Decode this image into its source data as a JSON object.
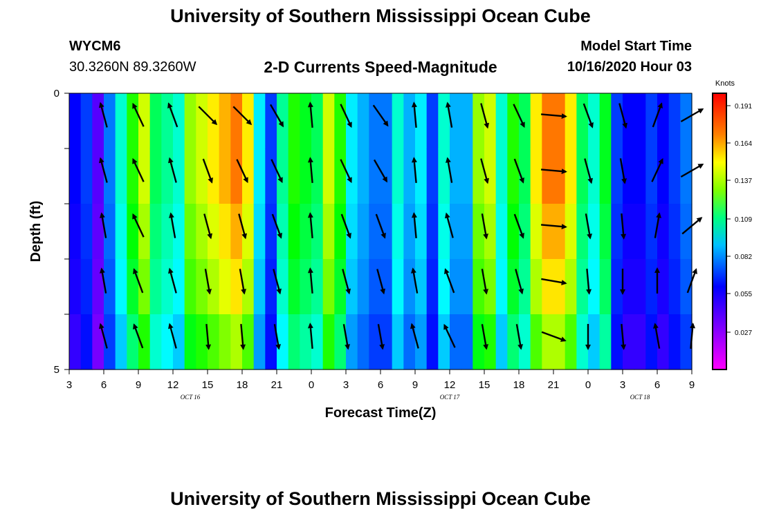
{
  "header": {
    "title": "University of Southern Mississippi Ocean Cube",
    "station_id": "WYCM6",
    "coords": "30.3260N 89.3260W",
    "chart_title": "2-D Currents Speed-Magnitude",
    "model_label": "Model Start Time",
    "model_time": "10/16/2020 Hour 03"
  },
  "footer": {
    "title": "University of Southern Mississippi Ocean Cube"
  },
  "chart_data": {
    "type": "heatmap",
    "title": "2-D Currents Speed-Magnitude",
    "xlabel": "Forecast Time(Z)",
    "ylabel": "Depth (ft)",
    "x_ticks": [
      "3",
      "6",
      "9",
      "12",
      "15",
      "18",
      "21",
      "0",
      "3",
      "6",
      "9",
      "12",
      "15",
      "18",
      "21",
      "0",
      "3",
      "6",
      "9"
    ],
    "date_labels": [
      {
        "label": "OCT 16",
        "tick_index": 3.5
      },
      {
        "label": "OCT 17",
        "tick_index": 11
      },
      {
        "label": "OCT 18",
        "tick_index": 16.5
      }
    ],
    "y_ticks": [
      "0",
      "5"
    ],
    "ylim": [
      0,
      5
    ],
    "colorbar": {
      "unit": "Knots",
      "min": 0.0,
      "max": 0.2,
      "ticks": [
        "0.191",
        "0.164",
        "0.137",
        "0.109",
        "0.082",
        "0.055",
        "0.027"
      ],
      "tick_values": [
        0.191,
        0.164,
        0.137,
        0.109,
        0.082,
        0.055,
        0.027
      ]
    },
    "hours": 54,
    "depth_bands": 5,
    "column_speeds": [
      0.03,
      0.04,
      0.02,
      0.05,
      0.08,
      0.12,
      0.15,
      0.1,
      0.09,
      0.08,
      0.14,
      0.15,
      0.16,
      0.17,
      0.18,
      0.16,
      0.07,
      0.04,
      0.09,
      0.12,
      0.11,
      0.1,
      0.15,
      0.12,
      0.07,
      0.06,
      0.05,
      0.05,
      0.08,
      0.06,
      0.07,
      0.04,
      0.08,
      0.06,
      0.06,
      0.14,
      0.15,
      0.08,
      0.12,
      0.1,
      0.16,
      0.18,
      0.18,
      0.16,
      0.1,
      0.08,
      0.11,
      0.04,
      0.03,
      0.03,
      0.04,
      0.03,
      0.04,
      0.05
    ],
    "band_factors": [
      1.0,
      1.0,
      0.95,
      0.9,
      0.8
    ],
    "vectors": [
      {
        "col": 1,
        "dirs": [
          -15,
          -15,
          -10,
          -10,
          -15
        ]
      },
      {
        "col": 2,
        "dirs": [
          -25,
          -25,
          -25,
          -20,
          -20
        ]
      },
      {
        "col": 3,
        "dirs": [
          -20,
          -15,
          -10,
          -15,
          -15
        ]
      },
      {
        "col": 4,
        "dirs": [
          135,
          160,
          165,
          170,
          175
        ]
      },
      {
        "col": 5,
        "dirs": [
          135,
          155,
          165,
          170,
          175
        ]
      },
      {
        "col": 6,
        "dirs": [
          150,
          155,
          160,
          165,
          170
        ]
      },
      {
        "col": 7,
        "dirs": [
          -5,
          -5,
          -5,
          -5,
          -5
        ]
      },
      {
        "col": 8,
        "dirs": [
          155,
          155,
          160,
          165,
          170
        ]
      },
      {
        "col": 9,
        "dirs": [
          145,
          150,
          160,
          165,
          170
        ]
      },
      {
        "col": 10,
        "dirs": [
          -5,
          -5,
          -5,
          -10,
          -15
        ]
      },
      {
        "col": 11,
        "dirs": [
          -10,
          -10,
          -15,
          -20,
          -25
        ]
      },
      {
        "col": 12,
        "dirs": [
          165,
          165,
          170,
          170,
          170
        ]
      },
      {
        "col": 13,
        "dirs": [
          155,
          160,
          160,
          165,
          170
        ]
      },
      {
        "col": 14,
        "dirs": [
          95,
          95,
          95,
          100,
          110
        ]
      },
      {
        "col": 15,
        "dirs": [
          160,
          165,
          170,
          175,
          180
        ]
      },
      {
        "col": 16,
        "dirs": [
          165,
          170,
          175,
          180,
          175
        ]
      },
      {
        "col": 17,
        "dirs": [
          20,
          25,
          10,
          0,
          -10
        ]
      },
      {
        "col": 18,
        "dirs": [
          60,
          60,
          50,
          20,
          5
        ]
      }
    ]
  }
}
